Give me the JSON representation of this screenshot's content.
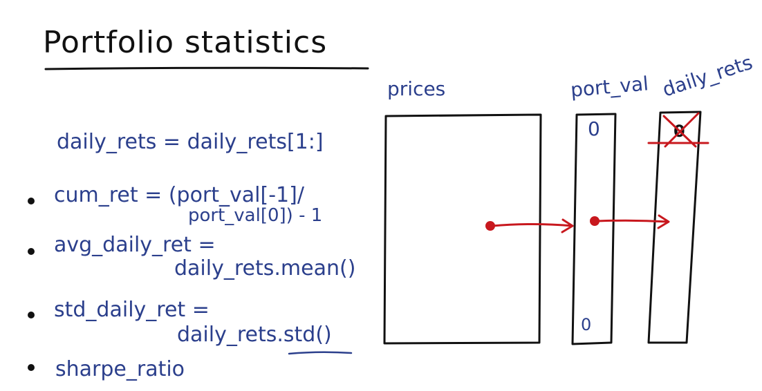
{
  "title": "Portfolio statistics",
  "statements": {
    "daily_rets": "daily_rets = daily_rets[1:]",
    "cum_ret": {
      "line1": "cum_ret = (port_val[-1]/",
      "line2": "port_val[0]) - 1"
    },
    "avg_daily_ret": {
      "line1": "avg_daily_ret =",
      "line2": "daily_rets.mean()"
    },
    "std_daily_ret": {
      "line1": "std_daily_ret =",
      "line2": "daily_rets.std()"
    },
    "sharpe_ratio": "sharpe_ratio"
  },
  "diagram": {
    "prices_label": "prices",
    "port_val_label": "port_val",
    "daily_rets_label": "daily_rets",
    "port_val_top_value": "0",
    "port_val_bottom_value": "0",
    "daily_rets_first_value": "0"
  },
  "colors": {
    "ink_black": "#111111",
    "ink_blue": "#2b3f8c",
    "ink_red": "#c8181e"
  }
}
